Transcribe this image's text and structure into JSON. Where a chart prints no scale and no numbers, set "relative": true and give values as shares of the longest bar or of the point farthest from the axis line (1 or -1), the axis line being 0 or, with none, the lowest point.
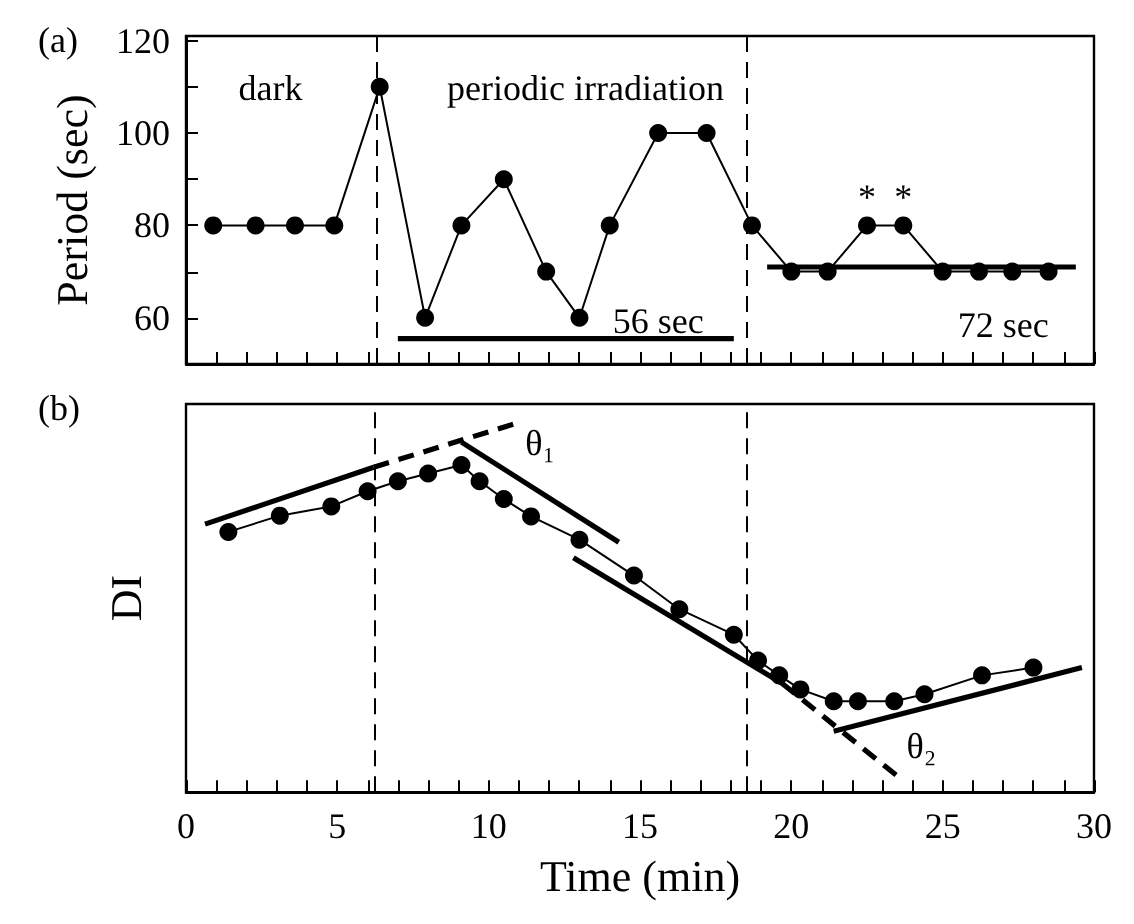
{
  "chart_data": [
    {
      "type": "line",
      "title": "(a)",
      "ylabel": "Period (sec)",
      "xlim": [
        0,
        30
      ],
      "xticks": [
        {
          "value": 0,
          "label": null
        },
        {
          "value": 1,
          "label": null
        },
        {
          "value": 2,
          "label": null
        },
        {
          "value": 3,
          "label": null
        },
        {
          "value": 4,
          "label": null
        },
        {
          "value": 5,
          "label": null
        },
        {
          "value": 6,
          "label": null
        },
        {
          "value": 7,
          "label": null
        },
        {
          "value": 8,
          "label": null
        },
        {
          "value": 9,
          "label": null
        },
        {
          "value": 10,
          "label": null
        },
        {
          "value": 11,
          "label": null
        },
        {
          "value": 12,
          "label": null
        },
        {
          "value": 13,
          "label": null
        },
        {
          "value": 14,
          "label": null
        },
        {
          "value": 15,
          "label": null
        },
        {
          "value": 16,
          "label": null
        },
        {
          "value": 17,
          "label": null
        },
        {
          "value": 18,
          "label": null
        },
        {
          "value": 19,
          "label": null
        },
        {
          "value": 20,
          "label": null
        },
        {
          "value": 21,
          "label": null
        },
        {
          "value": 22,
          "label": null
        },
        {
          "value": 23,
          "label": null
        },
        {
          "value": 24,
          "label": null
        },
        {
          "value": 25,
          "label": null
        },
        {
          "value": 26,
          "label": null
        },
        {
          "value": 27,
          "label": null
        },
        {
          "value": 28,
          "label": null
        },
        {
          "value": 29,
          "label": null
        },
        {
          "value": 30,
          "label": null
        }
      ],
      "ylim": [
        50,
        121
      ],
      "yticks": [
        60,
        {
          "value": 70,
          "label": null
        },
        80,
        {
          "value": 90,
          "label": null
        },
        100,
        {
          "value": 110,
          "label": null
        },
        120
      ],
      "tick_labels": "y",
      "grid": false,
      "ref_lines": [
        {
          "axis": "x",
          "value": 6.3,
          "label": null,
          "line_style": "dashed",
          "color": "#000000"
        },
        {
          "axis": "x",
          "value": 18.5,
          "label": null,
          "line_style": "dashed",
          "color": "#000000"
        }
      ],
      "annotations": [
        "dark",
        "periodic irradiation",
        "56 sec",
        "72 sec",
        {
          "text": "*",
          "x": 22.5,
          "y": 80
        },
        {
          "text": "*",
          "x": 23.7,
          "y": 80
        }
      ],
      "series": [
        {
          "color": "#000000",
          "marker": "circle",
          "line_style": "solid",
          "x": [
            0.9,
            2.3,
            3.6,
            4.9,
            6.4,
            7.9,
            9.1,
            10.5,
            11.9,
            13.0,
            14.0,
            15.6,
            17.2,
            18.7,
            20.0,
            21.2,
            22.5,
            23.7,
            25.0,
            26.2,
            27.3,
            28.5
          ],
          "values": [
            80,
            80,
            80,
            80,
            110,
            60,
            80,
            90,
            70,
            60,
            80,
            100,
            100,
            80,
            70,
            70,
            80,
            80,
            70,
            70,
            70,
            70
          ]
        },
        {
          "color": "#000000",
          "marker": "none",
          "line_style": "solid",
          "x": [
            7.0,
            18.1
          ],
          "values": [
            55.5,
            55.5
          ]
        },
        {
          "color": "#000000",
          "marker": "none",
          "line_style": "solid",
          "x": [
            19.2,
            29.4
          ],
          "values": [
            71,
            71
          ]
        }
      ]
    },
    {
      "type": "line",
      "title": "(b)",
      "xlabel": "Time (min)",
      "ylabel": "DI",
      "relative": true,
      "xlim": [
        0,
        30
      ],
      "xticks": [
        0,
        {
          "value": 1,
          "label": null
        },
        {
          "value": 2,
          "label": null
        },
        {
          "value": 3,
          "label": null
        },
        {
          "value": 4,
          "label": null
        },
        5,
        {
          "value": 6,
          "label": null
        },
        {
          "value": 7,
          "label": null
        },
        {
          "value": 8,
          "label": null
        },
        {
          "value": 9,
          "label": null
        },
        10,
        {
          "value": 11,
          "label": null
        },
        {
          "value": 12,
          "label": null
        },
        {
          "value": 13,
          "label": null
        },
        {
          "value": 14,
          "label": null
        },
        15,
        {
          "value": 16,
          "label": null
        },
        {
          "value": 17,
          "label": null
        },
        {
          "value": 18,
          "label": null
        },
        {
          "value": 19,
          "label": null
        },
        20,
        {
          "value": 21,
          "label": null
        },
        {
          "value": 22,
          "label": null
        },
        {
          "value": 23,
          "label": null
        },
        {
          "value": 24,
          "label": null
        },
        25,
        {
          "value": 26,
          "label": null
        },
        {
          "value": 27,
          "label": null
        },
        {
          "value": 28,
          "label": null
        },
        {
          "value": 29,
          "label": null
        },
        30
      ],
      "tick_labels": "x",
      "grid": false,
      "ref_lines": [
        {
          "axis": "x",
          "value": 6.25,
          "label": null,
          "line_style": "dashed",
          "color": "#000000"
        },
        {
          "axis": "x",
          "value": 18.5,
          "label": null,
          "line_style": "dashed",
          "color": "#000000"
        }
      ],
      "annotations": [
        "θ₁",
        "θ₂"
      ],
      "series": [
        {
          "color": "#000000",
          "marker": "circle",
          "line_style": "solid",
          "x": [
            1.4,
            3.1,
            4.8,
            6.0,
            7.0,
            8.0,
            9.1,
            9.7,
            10.5,
            11.4,
            13.0,
            14.8,
            16.3,
            18.1,
            18.9,
            19.6,
            20.3,
            21.4,
            22.2,
            23.4,
            24.4,
            26.3,
            28.0
          ],
          "values": [
            0.704,
            0.748,
            0.773,
            0.814,
            0.841,
            0.862,
            0.885,
            0.841,
            0.793,
            0.746,
            0.683,
            0.586,
            0.495,
            0.426,
            0.356,
            0.316,
            0.278,
            0.246,
            0.246,
            0.246,
            0.265,
            0.316,
            0.337
          ]
        },
        {
          "color": "#000000",
          "marker": "none",
          "line_style": "solid",
          "x": [
            0.63,
            6.2
          ],
          "values": [
            0.725,
            0.879
          ]
        },
        {
          "color": "#000000",
          "marker": "none",
          "line_style": "dashed",
          "x": [
            6.2,
            11.0
          ],
          "values": [
            0.879,
            1.0
          ]
        },
        {
          "color": "#000000",
          "marker": "none",
          "line_style": "solid",
          "x": [
            9.1,
            14.3
          ],
          "values": [
            0.947,
            0.676
          ]
        },
        {
          "color": "#000000",
          "marker": "none",
          "line_style": "solid",
          "x": [
            12.8,
            19.7
          ],
          "values": [
            0.634,
            0.294
          ]
        },
        {
          "color": "#000000",
          "marker": "none",
          "line_style": "dashed",
          "x": [
            19.7,
            23.5
          ],
          "values": [
            0.294,
            0.044
          ]
        },
        {
          "color": "#000000",
          "marker": "none",
          "line_style": "solid",
          "x": [
            21.4,
            29.6
          ],
          "values": [
            0.165,
            0.337
          ]
        }
      ]
    }
  ]
}
